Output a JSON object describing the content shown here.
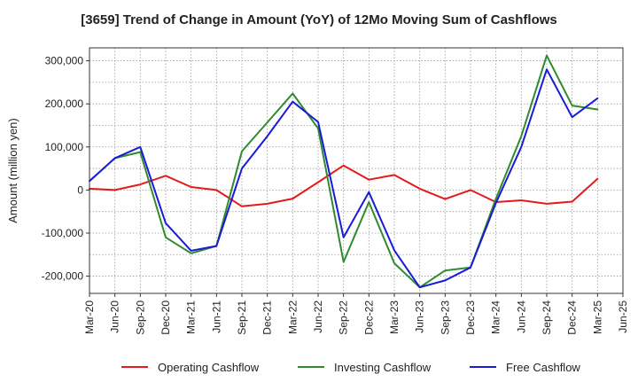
{
  "chart_data": {
    "type": "line",
    "title": "[3659]  Trend of Change in Amount (YoY) of 12Mo Moving Sum of Cashflows",
    "xlabel": "",
    "ylabel": "Amount (million yen)",
    "ylim": [
      -240000,
      330000
    ],
    "yticks": [
      -200000,
      -100000,
      0,
      100000,
      200000,
      300000
    ],
    "ytick_labels": [
      "-200,000",
      "-100,000",
      "0",
      "100,000",
      "200,000",
      "300,000"
    ],
    "grid": true,
    "legend_position": "bottom",
    "categories": [
      "Mar-20",
      "Jun-20",
      "Sep-20",
      "Dec-20",
      "Mar-21",
      "Jun-21",
      "Sep-21",
      "Dec-21",
      "Mar-22",
      "Jun-22",
      "Sep-22",
      "Dec-22",
      "Mar-23",
      "Jun-23",
      "Sep-23",
      "Dec-23",
      "Mar-24",
      "Jun-24",
      "Sep-24",
      "Dec-24",
      "Mar-25",
      "Jun-25"
    ],
    "series": [
      {
        "name": "Operating Cashflow",
        "color": "#e41a1c",
        "values": [
          3000,
          0,
          13000,
          33000,
          7000,
          0,
          -38000,
          -32000,
          -20000,
          18000,
          57000,
          24000,
          35000,
          3000,
          -21000,
          0,
          -28000,
          -24000,
          -32000,
          -27000,
          26000,
          null
        ]
      },
      {
        "name": "Investing Cashflow",
        "color": "#2e8b2e",
        "values": [
          21000,
          74000,
          88000,
          -110000,
          -147000,
          -130000,
          90000,
          157000,
          224000,
          143000,
          -167000,
          -28000,
          -170000,
          -226000,
          -187000,
          -180000,
          -20000,
          125000,
          312000,
          196000,
          187000,
          null
        ]
      },
      {
        "name": "Free Cashflow",
        "color": "#1a1adb",
        "values": [
          21000,
          74000,
          100000,
          -77000,
          -141000,
          -130000,
          50000,
          125000,
          205000,
          158000,
          -110000,
          -5000,
          -140000,
          -226000,
          -210000,
          -180000,
          -30000,
          100000,
          280000,
          169000,
          213000,
          null
        ]
      }
    ]
  }
}
